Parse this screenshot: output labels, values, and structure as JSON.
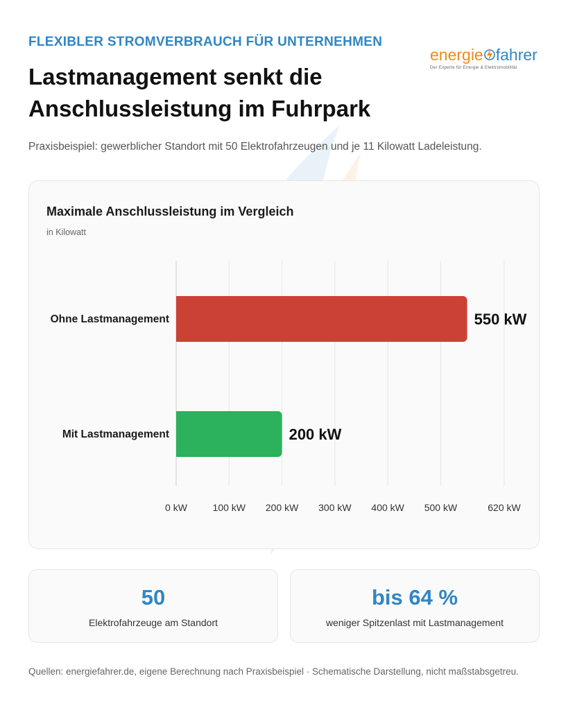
{
  "colors": {
    "accent": "#2f86c4",
    "bar_without": "#cc4136",
    "bar_with": "#2cb15c",
    "logo_orange": "#ef8a1c",
    "logo_blue": "#2f86c4"
  },
  "header": {
    "eyebrow": "FLEXIBLER STROMVERBRAUCH FÜR UNTERNEHMEN",
    "title": "Lastmanagement senkt die Anschlussleistung im Fuhrpark",
    "subtitle": "Praxisbeispiel: gewerblicher Standort mit 50 Elektrofahrzeugen und je 11 Kilowatt Ladeleistung."
  },
  "logo": {
    "word_part1": "energie",
    "word_part2": "fahrer",
    "tagline": "Der Experte für Energie & Elektromobilität"
  },
  "chart_data": {
    "type": "bar",
    "orientation": "horizontal",
    "title": "Maximale Anschlussleistung im Vergleich",
    "subtitle": "in Kilowatt",
    "categories": [
      "Ohne Lastmanagement",
      "Mit Lastmanagement"
    ],
    "values": [
      550,
      200
    ],
    "value_labels": [
      "550 kW",
      "200 kW"
    ],
    "unit": "kW",
    "xlim": [
      0,
      620
    ],
    "xticks": [
      0,
      100,
      200,
      300,
      400,
      500,
      620
    ],
    "xtick_labels": [
      "0 kW",
      "100 kW",
      "200 kW",
      "300 kW",
      "400 kW",
      "500 kW",
      "620 kW"
    ],
    "grid": true,
    "legend": "none"
  },
  "stats": [
    {
      "value": "50",
      "label": "Elektrofahrzeuge am Standort"
    },
    {
      "value": "bis 64 %",
      "label": "weniger Spitzenlast mit Lastmanagement"
    }
  ],
  "footer": "Quellen: energiefahrer.de, eigene Berechnung nach Praxisbeispiel · Schematische Darstellung, nicht maßstabsgetreu."
}
